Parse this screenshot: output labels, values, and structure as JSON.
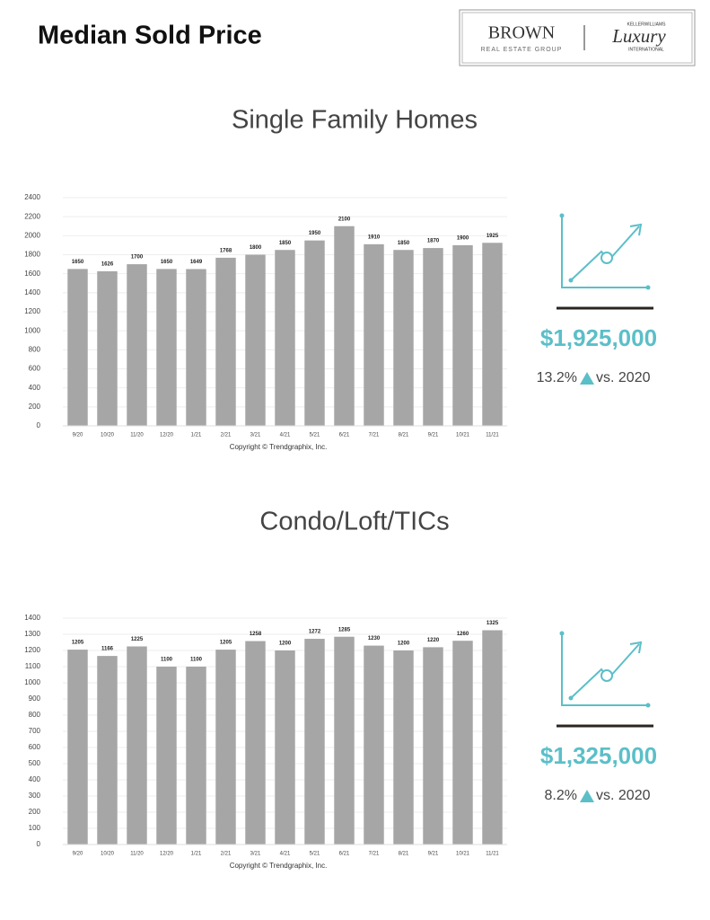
{
  "header": {
    "title": "Median Sold Price",
    "logo": {
      "brand": "BROWN",
      "brand_sub": "REAL ESTATE GROUP",
      "partner_top": "KELLERWILLIAMS",
      "partner": "Luxury",
      "partner_bottom": "INTERNATIONAL"
    }
  },
  "chart_data": [
    {
      "type": "bar",
      "title": "Single Family Homes",
      "caption": "Copyright © Trendgraphix, Inc.",
      "color": "#a6a6a6",
      "grid": true,
      "categories": [
        "9/20",
        "10/20",
        "11/20",
        "12/20",
        "1/21",
        "2/21",
        "3/21",
        "4/21",
        "5/21",
        "6/21",
        "7/21",
        "8/21",
        "9/21",
        "10/21",
        "11/21"
      ],
      "values": [
        1650,
        1626,
        1700,
        1650,
        1649,
        1768,
        1800,
        1850,
        1950,
        2100,
        1910,
        1850,
        1870,
        1900,
        1925
      ],
      "ylim": [
        0,
        2400
      ],
      "yticks": [
        0,
        200,
        400,
        600,
        800,
        1000,
        1200,
        1400,
        1600,
        1800,
        2000,
        2200,
        2400
      ],
      "highlight": {
        "price": "$1,925,000",
        "change": "13.2%",
        "comparison": "vs. 2020"
      }
    },
    {
      "type": "bar",
      "title": "Condo/Loft/TICs",
      "caption": "Copyright © Trendgraphix, Inc.",
      "color": "#a6a6a6",
      "grid": true,
      "categories": [
        "9/20",
        "10/20",
        "11/20",
        "12/20",
        "1/21",
        "2/21",
        "3/21",
        "4/21",
        "5/21",
        "6/21",
        "7/21",
        "8/21",
        "9/21",
        "10/21",
        "11/21"
      ],
      "values": [
        1205,
        1166,
        1225,
        1100,
        1100,
        1205,
        1258,
        1200,
        1272,
        1285,
        1230,
        1200,
        1220,
        1260,
        1325
      ],
      "ylim": [
        0,
        1400
      ],
      "yticks": [
        0,
        100,
        200,
        300,
        400,
        500,
        600,
        700,
        800,
        900,
        1000,
        1100,
        1200,
        1300,
        1400
      ],
      "highlight": {
        "price": "$1,325,000",
        "change": "8.2%",
        "comparison": "vs. 2020"
      }
    }
  ]
}
